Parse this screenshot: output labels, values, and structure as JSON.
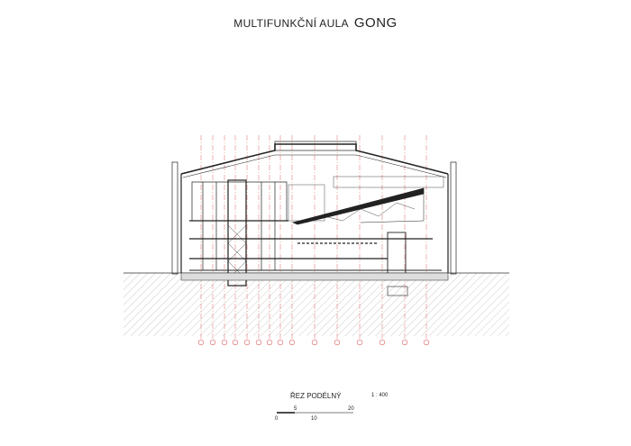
{
  "title": {
    "prefix": "MULTIFUNKČNÍ AULA",
    "name": "GONG"
  },
  "caption": {
    "section_name": "ŘEZ PODÉLNÝ",
    "scale": "1 : 400"
  },
  "scale_bar": {
    "labels": [
      "0",
      "5",
      "10",
      "20"
    ],
    "unit_max": 20
  },
  "colors": {
    "lines": "#222222",
    "grid_axes": "#d04040",
    "hatch": "#999999"
  }
}
